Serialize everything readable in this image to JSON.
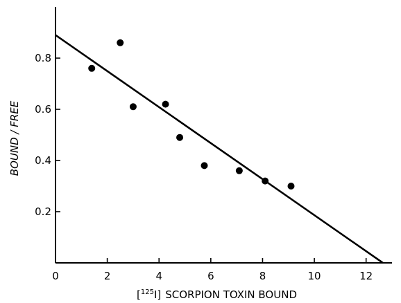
{
  "chart_data": {
    "type": "scatter",
    "xlabel_prefix": "[",
    "xlabel_sup": "125",
    "xlabel_iso": "I]",
    "xlabel_rest": "SCORPION TOXIN BOUND",
    "ylabel": "BOUND / FREE",
    "xlim": [
      0,
      13
    ],
    "ylim": [
      0,
      1.0
    ],
    "x_ticks": [
      0,
      2,
      4,
      6,
      8,
      10,
      12
    ],
    "x_tick_labels": [
      "0",
      "2",
      "4",
      "6",
      "8",
      "10",
      "12"
    ],
    "y_ticks": [
      0.2,
      0.4,
      0.6,
      0.8
    ],
    "y_tick_labels": [
      "0.2",
      "0.4",
      "0.6",
      "0.8"
    ],
    "points": [
      {
        "x": 1.4,
        "y": 0.76
      },
      {
        "x": 2.5,
        "y": 0.86
      },
      {
        "x": 3.0,
        "y": 0.61
      },
      {
        "x": 4.25,
        "y": 0.62
      },
      {
        "x": 4.8,
        "y": 0.49
      },
      {
        "x": 5.75,
        "y": 0.38
      },
      {
        "x": 7.1,
        "y": 0.36
      },
      {
        "x": 8.1,
        "y": 0.32
      },
      {
        "x": 9.1,
        "y": 0.3
      }
    ],
    "fit_line": {
      "x": [
        0,
        12.65
      ],
      "y": [
        0.89,
        0.0
      ]
    }
  }
}
